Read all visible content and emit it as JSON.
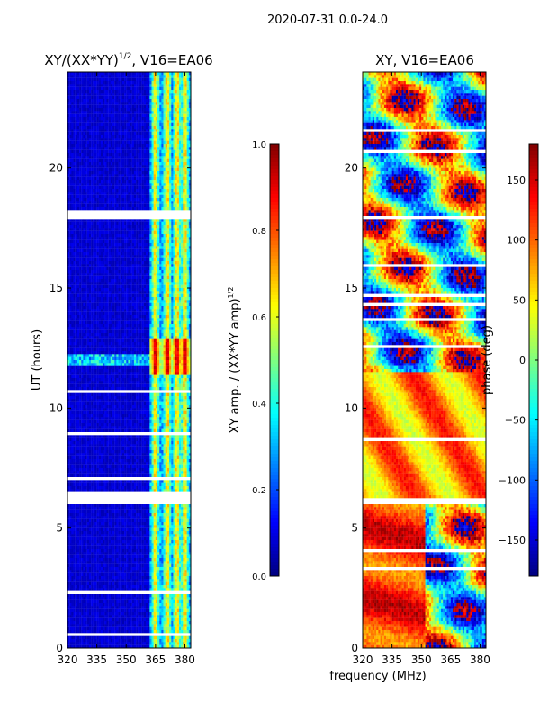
{
  "figure_title": "2020-07-31 0.0-24.0",
  "shared_xlabel": "frequency (MHz)",
  "colors": {
    "jet_dark_blue": "#00007f",
    "jet_blue": "#0000ff",
    "jet_cyan": "#00ffff",
    "jet_yellow": "#ffff00",
    "jet_red": "#ff0000",
    "jet_dark_red": "#7f0000",
    "gap": "#ffffff"
  },
  "chart_data": [
    {
      "type": "heatmap",
      "title": "XY/(XX*YY)",
      "title_exponent": "1/2",
      "title_suffix": ", V16=EA06",
      "xlabel": "",
      "ylabel": "UT (hours)",
      "x_ticks": [
        "320",
        "335",
        "350",
        "365",
        "380"
      ],
      "x_tick_values": [
        320,
        335,
        350,
        365,
        380
      ],
      "y_ticks": [
        "0",
        "5",
        "10",
        "15",
        "20"
      ],
      "y_tick_values": [
        0,
        5,
        10,
        15,
        20
      ],
      "xlim": [
        320,
        383
      ],
      "ylim": [
        0,
        24
      ],
      "colormap": "jet",
      "colorbar": {
        "label": "XY amp. / (XX*YY amp)",
        "label_exponent": "1/2",
        "range": [
          0,
          1
        ],
        "ticks": [
          "0.0",
          "0.2",
          "0.4",
          "0.6",
          "0.8",
          "1.0"
        ],
        "tick_values": [
          0,
          0.2,
          0.4,
          0.6,
          0.8,
          1.0
        ]
      },
      "data_gaps_hours": [
        [
          6.05,
          6.55
        ],
        [
          17.85,
          18.2
        ]
      ],
      "active_band_MHz": [
        362,
        383
      ],
      "flare_hours": [
        11.4,
        12.9
      ]
    },
    {
      "type": "heatmap",
      "title": "XY, V16=EA06",
      "xlabel": "frequency (MHz)",
      "ylabel": "",
      "x_ticks": [
        "320",
        "335",
        "350",
        "365",
        "380"
      ],
      "x_tick_values": [
        320,
        335,
        350,
        365,
        380
      ],
      "y_ticks": [
        "0",
        "5",
        "10",
        "15",
        "20"
      ],
      "y_tick_values": [
        0,
        5,
        10,
        15,
        20
      ],
      "xlim": [
        320,
        383
      ],
      "ylim": [
        0,
        24
      ],
      "colormap": "jet",
      "colorbar": {
        "label": "phase (deg)",
        "range": [
          -180,
          180
        ],
        "ticks": [
          "−150",
          "−100",
          "−50",
          "0",
          "50",
          "100",
          "150"
        ],
        "tick_values": [
          -150,
          -100,
          -50,
          0,
          50,
          100,
          150
        ]
      },
      "data_gaps_hours": [
        [
          6.05,
          6.3
        ],
        [
          17.85,
          18.0
        ]
      ]
    }
  ]
}
